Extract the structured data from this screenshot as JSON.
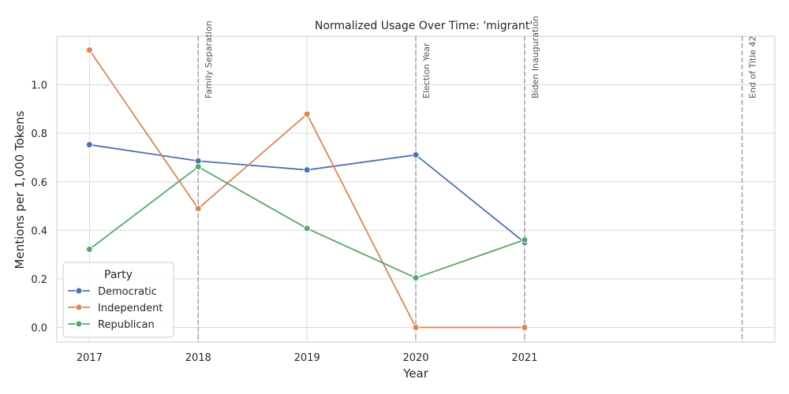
{
  "chart_data": {
    "type": "line",
    "title": "Normalized Usage Over Time: 'migrant'",
    "xlabel": "Year",
    "ylabel": "Mentions per 1,000 Tokens",
    "x": [
      2017,
      2018,
      2019,
      2020,
      2021
    ],
    "xlim": [
      2016.7,
      2023.3
    ],
    "ylim": [
      -0.06,
      1.2
    ],
    "yticks": [
      "0.0",
      "0.2",
      "0.4",
      "0.6",
      "0.8",
      "1.0"
    ],
    "xticks": [
      "2017",
      "2018",
      "2019",
      "2020",
      "2021"
    ],
    "grid": true,
    "legend": {
      "title": "Party",
      "placement": "lower-left"
    },
    "series": [
      {
        "name": "Democratic",
        "color": "#4c72b0",
        "values": [
          0.753,
          0.686,
          0.649,
          0.711,
          0.35
        ]
      },
      {
        "name": "Independent",
        "color": "#dd8452",
        "values": [
          1.143,
          0.49,
          0.879,
          0.0,
          0.0
        ]
      },
      {
        "name": "Republican",
        "color": "#55a868",
        "values": [
          0.322,
          0.662,
          0.408,
          0.204,
          0.361
        ]
      }
    ],
    "events": [
      {
        "x": 2018,
        "label": "Family Separation"
      },
      {
        "x": 2020,
        "label": "Election Year"
      },
      {
        "x": 2021,
        "label": "Biden Inauguration"
      },
      {
        "x": 2023,
        "label": "End of Title 42"
      }
    ],
    "event_line_color": "#a6a6a6"
  }
}
